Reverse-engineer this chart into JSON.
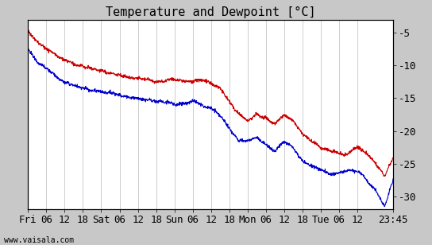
{
  "title": "Temperature and Dewpoint [°C]",
  "ylim": [
    -32,
    -3
  ],
  "yticks": [
    -5,
    -10,
    -15,
    -20,
    -25,
    -30
  ],
  "xlabel_labels": [
    "Fri",
    "06",
    "12",
    "18",
    "Sat",
    "06",
    "12",
    "18",
    "Sun",
    "06",
    "12",
    "18",
    "Mon",
    "06",
    "12",
    "18",
    "Tue",
    "06",
    "12",
    "23:45"
  ],
  "background_color": "#c8c8c8",
  "plot_bg_color": "#ffffff",
  "grid_color": "#bbbbbb",
  "temp_color": "#cc0000",
  "dewpoint_color": "#0000cc",
  "watermark": "www.vaisala.com",
  "title_fontsize": 11,
  "tick_fontsize": 9,
  "line_width": 0.8,
  "n_points": 1440,
  "total_hours": 119.75,
  "tick_hours": [
    0,
    6,
    12,
    18,
    24,
    30,
    36,
    42,
    48,
    54,
    60,
    66,
    72,
    78,
    84,
    90,
    96,
    102,
    108,
    119.75
  ],
  "temp_keypoints": [
    [
      0,
      -4.8
    ],
    [
      3,
      -6.5
    ],
    [
      6,
      -7.5
    ],
    [
      9,
      -8.5
    ],
    [
      12,
      -9.2
    ],
    [
      15,
      -9.8
    ],
    [
      18,
      -10.2
    ],
    [
      21,
      -10.5
    ],
    [
      24,
      -10.8
    ],
    [
      27,
      -11.2
    ],
    [
      30,
      -11.5
    ],
    [
      33,
      -11.8
    ],
    [
      36,
      -12.0
    ],
    [
      39,
      -12.2
    ],
    [
      42,
      -12.5
    ],
    [
      45,
      -12.3
    ],
    [
      48,
      -12.0
    ],
    [
      51,
      -12.3
    ],
    [
      54,
      -12.5
    ],
    [
      57,
      -12.3
    ],
    [
      60,
      -12.8
    ],
    [
      63,
      -13.5
    ],
    [
      66,
      -15.5
    ],
    [
      69,
      -17.5
    ],
    [
      72,
      -18.5
    ],
    [
      75,
      -17.5
    ],
    [
      78,
      -18.0
    ],
    [
      81,
      -19.0
    ],
    [
      84,
      -17.5
    ],
    [
      87,
      -18.5
    ],
    [
      90,
      -20.5
    ],
    [
      93,
      -21.5
    ],
    [
      96,
      -22.5
    ],
    [
      99,
      -23.0
    ],
    [
      102,
      -23.5
    ],
    [
      105,
      -23.5
    ],
    [
      108,
      -22.5
    ],
    [
      111,
      -23.5
    ],
    [
      114,
      -25.0
    ],
    [
      117,
      -27.0
    ],
    [
      119.75,
      -24.0
    ]
  ],
  "dew_keypoints": [
    [
      0,
      -7.5
    ],
    [
      3,
      -9.5
    ],
    [
      6,
      -10.5
    ],
    [
      9,
      -11.5
    ],
    [
      12,
      -12.5
    ],
    [
      15,
      -13.0
    ],
    [
      18,
      -13.5
    ],
    [
      21,
      -13.8
    ],
    [
      24,
      -14.0
    ],
    [
      27,
      -14.2
    ],
    [
      30,
      -14.5
    ],
    [
      33,
      -14.8
    ],
    [
      36,
      -15.0
    ],
    [
      39,
      -15.2
    ],
    [
      42,
      -15.5
    ],
    [
      45,
      -15.5
    ],
    [
      48,
      -15.8
    ],
    [
      51,
      -16.0
    ],
    [
      54,
      -15.5
    ],
    [
      57,
      -16.0
    ],
    [
      60,
      -16.5
    ],
    [
      63,
      -17.5
    ],
    [
      66,
      -19.5
    ],
    [
      69,
      -21.5
    ],
    [
      72,
      -21.5
    ],
    [
      75,
      -21.0
    ],
    [
      78,
      -22.0
    ],
    [
      81,
      -23.0
    ],
    [
      84,
      -21.5
    ],
    [
      87,
      -22.5
    ],
    [
      90,
      -24.5
    ],
    [
      93,
      -25.5
    ],
    [
      96,
      -26.0
    ],
    [
      99,
      -26.5
    ],
    [
      102,
      -26.5
    ],
    [
      105,
      -26.0
    ],
    [
      108,
      -26.0
    ],
    [
      111,
      -27.5
    ],
    [
      114,
      -29.0
    ],
    [
      117,
      -31.5
    ],
    [
      119.75,
      -27.5
    ]
  ]
}
